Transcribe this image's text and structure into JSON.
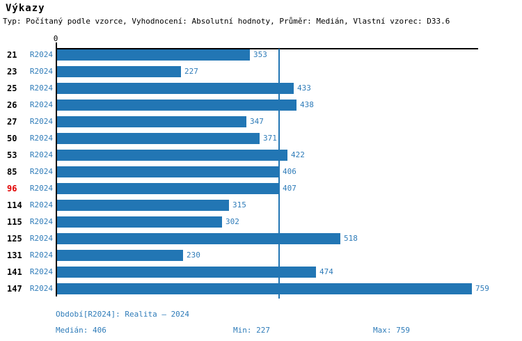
{
  "header": {
    "title": "Výkazy",
    "subtitle": "Typ: Počítaný podle vzorce, Vyhodnocení: Absolutní hodnoty, Průměr: Medián, Vlastní vzorec: D33.6"
  },
  "chart_data": {
    "type": "bar",
    "orientation": "horizontal",
    "title": "Výkazy",
    "axis_origin_label": "0",
    "series_label": "R2024",
    "categories": [
      "21",
      "23",
      "25",
      "26",
      "27",
      "50",
      "53",
      "85",
      "96",
      "114",
      "115",
      "125",
      "131",
      "141",
      "147"
    ],
    "values": [
      353,
      227,
      433,
      438,
      347,
      371,
      422,
      406,
      407,
      315,
      302,
      518,
      230,
      474,
      759
    ],
    "highlighted_category": "96",
    "median_line_value": 406,
    "xlim": [
      0,
      770
    ],
    "grid": false,
    "legend": false,
    "bar_color": "#2276b4",
    "label_color": "#2f7cb9",
    "highlight_color": "#e10000"
  },
  "footer": {
    "period": "Období[R2024]: Realita – 2024",
    "median": "Medián: 406",
    "min": "Min: 227",
    "max": "Max: 759"
  }
}
